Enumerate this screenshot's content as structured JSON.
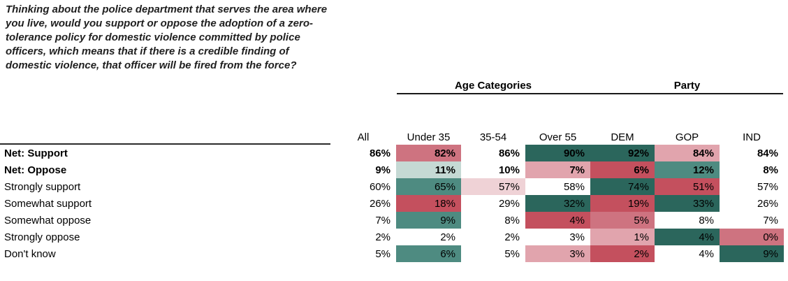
{
  "question": "Thinking about the police department that serves the area where you live, would you support or oppose the adoption of a zero-tolerance policy for domestic violence committed by police officers, which means that if there is a credible finding of domestic violence, that officer will be fired from the force?",
  "chart_data": {
    "type": "table",
    "column_groups": [
      {
        "label": "Age Categories",
        "span": [
          "Under 35",
          "35-54",
          "Over 55"
        ]
      },
      {
        "label": "Party",
        "span": [
          "DEM",
          "GOP",
          "IND"
        ]
      }
    ],
    "columns": [
      "All",
      "Under 35",
      "35-54",
      "Over 55",
      "DEM",
      "GOP",
      "IND"
    ],
    "rows": [
      {
        "label": "Net: Support",
        "bold": true,
        "values": [
          "86%",
          "82%",
          "86%",
          "90%",
          "92%",
          "84%",
          "84%"
        ],
        "fills": [
          null,
          "red2",
          null,
          "teal3",
          "teal3",
          "red1",
          null
        ]
      },
      {
        "label": "Net: Oppose",
        "bold": true,
        "values": [
          "9%",
          "11%",
          "10%",
          "7%",
          "6%",
          "12%",
          "8%"
        ],
        "fills": [
          null,
          "teal1",
          null,
          "red1",
          "red3",
          "teal2",
          null
        ]
      },
      {
        "label": "Strongly support",
        "bold": false,
        "values": [
          "60%",
          "65%",
          "57%",
          "58%",
          "74%",
          "51%",
          "57%"
        ],
        "fills": [
          null,
          "teal2",
          "red0",
          null,
          "teal3",
          "red3",
          null
        ]
      },
      {
        "label": "Somewhat support",
        "bold": false,
        "values": [
          "26%",
          "18%",
          "29%",
          "32%",
          "19%",
          "33%",
          "26%"
        ],
        "fills": [
          null,
          "red3",
          null,
          "teal3",
          "red3",
          "teal3",
          null
        ]
      },
      {
        "label": "Somewhat oppose",
        "bold": false,
        "values": [
          "7%",
          "9%",
          "8%",
          "4%",
          "5%",
          "8%",
          "7%"
        ],
        "fills": [
          null,
          "teal2",
          null,
          "red3",
          "red2",
          null,
          null
        ]
      },
      {
        "label": "Strongly oppose",
        "bold": false,
        "values": [
          "2%",
          "2%",
          "2%",
          "3%",
          "1%",
          "4%",
          "0%"
        ],
        "fills": [
          null,
          null,
          null,
          null,
          "red1",
          "teal3",
          "red2"
        ]
      },
      {
        "label": "Don't know",
        "bold": false,
        "values": [
          "5%",
          "6%",
          "5%",
          "3%",
          "2%",
          "4%",
          "9%"
        ],
        "fills": [
          null,
          "teal2",
          null,
          "red1",
          "red3",
          null,
          "teal3"
        ]
      }
    ],
    "palette": {
      "teal3": "#2B665C",
      "teal2": "#4E8B81",
      "teal1": "#C5D9D4",
      "red3": "#C4505E",
      "red2": "#CE7380",
      "red1": "#E1A4AD",
      "red0": "#EFD2D6"
    }
  }
}
